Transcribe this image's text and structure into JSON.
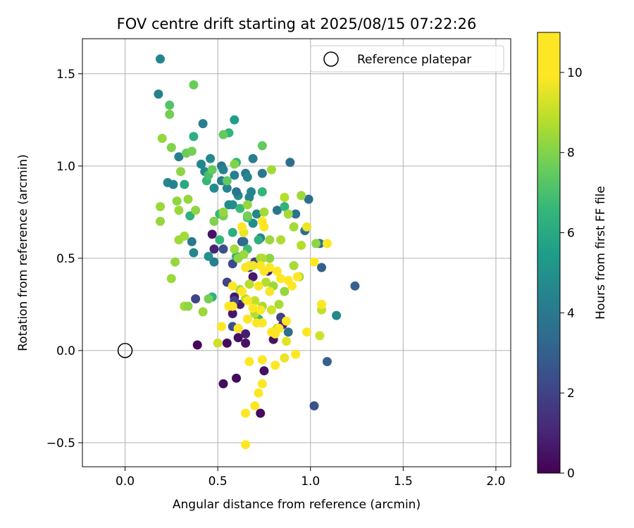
{
  "chart_data": {
    "type": "scatter",
    "title": "FOV centre drift starting at 2025/08/15 07:22:26",
    "xlabel": "Angular distance from reference (arcmin)",
    "ylabel": "Rotation from reference (arcmin)",
    "xlim": [
      -0.23,
      2.08
    ],
    "ylim": [
      -0.63,
      1.69
    ],
    "xticks": [
      0.0,
      0.5,
      1.0,
      1.5,
      2.0
    ],
    "xtick_labels": [
      "0.0",
      "0.5",
      "1.0",
      "1.5",
      "2.0"
    ],
    "yticks": [
      -0.5,
      0.0,
      0.5,
      1.0,
      1.5
    ],
    "ytick_labels": [
      "−0.5",
      "0.0",
      "0.5",
      "1.0",
      "1.5"
    ],
    "grid": true,
    "legend": {
      "label": "Reference platepar",
      "placement": "top-right"
    },
    "reference_point": {
      "x": 0.0,
      "y": 0.0
    },
    "colorbar": {
      "label": "Hours from first FF file",
      "range": [
        0,
        11
      ],
      "ticks": [
        0,
        2,
        4,
        6,
        8,
        10
      ],
      "tick_labels": [
        "0",
        "2",
        "4",
        "6",
        "8",
        "10"
      ],
      "colormap": "viridis"
    },
    "points": [
      [
        0.39,
        0.03,
        0.2
      ],
      [
        0.55,
        0.04,
        0.3
      ],
      [
        0.65,
        0.04,
        0.5
      ],
      [
        0.73,
        -0.34,
        0.3
      ],
      [
        0.6,
        -0.15,
        0.3
      ],
      [
        0.53,
        -0.18,
        0.3
      ],
      [
        0.75,
        -0.11,
        0.4
      ],
      [
        0.47,
        0.63,
        0.5
      ],
      [
        0.48,
        0.55,
        1
      ],
      [
        0.59,
        0.29,
        0.6
      ],
      [
        0.62,
        0.25,
        0.8
      ],
      [
        0.69,
        0.4,
        0.7
      ],
      [
        0.58,
        0.2,
        0.6
      ],
      [
        0.61,
        0.07,
        0.4
      ],
      [
        0.8,
        0.06,
        0.5
      ],
      [
        0.85,
        0.14,
        1
      ],
      [
        0.65,
        0.09,
        0.8
      ],
      [
        0.77,
        0.43,
        0.8
      ],
      [
        0.55,
        0.37,
        2
      ],
      [
        0.58,
        0.47,
        2.2
      ],
      [
        0.59,
        0.27,
        2
      ],
      [
        0.67,
        0.45,
        2.2
      ],
      [
        0.84,
        0.18,
        2
      ],
      [
        0.58,
        0.13,
        2.5
      ],
      [
        0.38,
        0.28,
        2
      ],
      [
        1.02,
        -0.3,
        2.5
      ],
      [
        1.24,
        0.35,
        3
      ],
      [
        1.06,
        0.45,
        3
      ],
      [
        1.09,
        -0.06,
        3
      ],
      [
        0.88,
        0.1,
        3.5
      ],
      [
        0.7,
        0.48,
        1.8
      ],
      [
        0.63,
        0.59,
        2.5
      ],
      [
        0.53,
        0.55,
        2.4
      ],
      [
        0.19,
        1.58,
        4.5
      ],
      [
        0.18,
        1.39,
        4.3
      ],
      [
        0.29,
        1.05,
        4.3
      ],
      [
        0.23,
        0.91,
        4.6
      ],
      [
        0.26,
        0.9,
        4.4
      ],
      [
        0.42,
        1.23,
        4.2
      ],
      [
        0.41,
        1.01,
        4.5
      ],
      [
        0.46,
        1.04,
        4.7
      ],
      [
        0.43,
        0.97,
        4.6
      ],
      [
        0.48,
        0.88,
        4.8
      ],
      [
        0.52,
        0.92,
        4.2
      ],
      [
        0.55,
        0.88,
        4.5
      ],
      [
        0.52,
        1.0,
        3.8
      ],
      [
        0.53,
        0.98,
        4.4
      ],
      [
        0.59,
        0.95,
        4.3
      ],
      [
        0.65,
        0.96,
        4
      ],
      [
        0.66,
        0.94,
        4.6
      ],
      [
        0.69,
        1.04,
        4.2
      ],
      [
        0.74,
        0.96,
        3.9
      ],
      [
        0.89,
        1.02,
        3.6
      ],
      [
        0.61,
        0.84,
        4.8
      ],
      [
        0.68,
        0.86,
        4.5
      ],
      [
        0.71,
        0.74,
        4.6
      ],
      [
        0.56,
        0.79,
        4.7
      ],
      [
        0.6,
        0.86,
        3.8
      ],
      [
        0.67,
        0.83,
        4.5
      ],
      [
        0.69,
        0.69,
        4.8
      ],
      [
        0.64,
        0.59,
        3.5
      ],
      [
        0.82,
        0.76,
        3.9
      ],
      [
        0.99,
        0.82,
        3.6
      ],
      [
        0.92,
        0.74,
        3.7
      ],
      [
        0.97,
        0.65,
        3.6
      ],
      [
        1.05,
        0.58,
        3.7
      ],
      [
        0.36,
        0.59,
        4
      ],
      [
        0.37,
        0.53,
        4.6
      ],
      [
        0.45,
        0.51,
        5
      ],
      [
        0.48,
        0.48,
        4.3
      ],
      [
        0.58,
        0.79,
        4.8
      ],
      [
        1.14,
        0.19,
        4.6
      ],
      [
        0.73,
        0.61,
        4.5
      ],
      [
        0.59,
        1.25,
        5.5
      ],
      [
        0.56,
        1.18,
        6.5
      ],
      [
        0.6,
        1.02,
        6.5
      ],
      [
        0.37,
        1.16,
        6.2
      ],
      [
        0.32,
        0.9,
        6
      ],
      [
        0.35,
        0.73,
        6.3
      ],
      [
        0.44,
        0.92,
        6.6
      ],
      [
        0.51,
        0.74,
        6.6
      ],
      [
        0.58,
        0.64,
        6.2
      ],
      [
        0.66,
        0.72,
        6.8
      ],
      [
        0.74,
        0.86,
        6.5
      ],
      [
        0.72,
        0.6,
        6.3
      ],
      [
        0.86,
        0.78,
        6.4
      ],
      [
        0.62,
        0.77,
        6.7
      ],
      [
        0.66,
        0.55,
        6.8
      ],
      [
        0.51,
        0.6,
        6.6
      ],
      [
        0.47,
        0.29,
        6.3
      ],
      [
        0.72,
        0.17,
        6.5
      ],
      [
        0.6,
        0.51,
        6.4
      ],
      [
        0.45,
        0.95,
        7
      ],
      [
        0.24,
        1.33,
        7.2
      ],
      [
        0.37,
        1.44,
        7.6
      ],
      [
        0.24,
        1.28,
        7.8
      ],
      [
        0.33,
        1.07,
        7.6
      ],
      [
        0.36,
        1.08,
        7.8
      ],
      [
        0.25,
        1.1,
        8
      ],
      [
        0.47,
        0.98,
        7.5
      ],
      [
        0.53,
        1.17,
        7.5
      ],
      [
        0.55,
        0.92,
        7.4
      ],
      [
        0.74,
        1.11,
        7.5
      ],
      [
        0.59,
        1.01,
        8
      ],
      [
        0.53,
        0.73,
        7.8
      ],
      [
        0.66,
        0.79,
        8.3
      ],
      [
        0.79,
        0.98,
        8.5
      ],
      [
        0.86,
        0.83,
        8.8
      ],
      [
        0.75,
        0.75,
        8.5
      ],
      [
        0.66,
        0.73,
        7.8
      ],
      [
        0.2,
        1.15,
        8.3
      ],
      [
        0.19,
        0.78,
        8.4
      ],
      [
        0.19,
        0.7,
        8.3
      ],
      [
        0.28,
        0.81,
        8.2
      ],
      [
        0.29,
        0.76,
        8.4
      ],
      [
        0.3,
        0.97,
        8.2
      ],
      [
        0.34,
        0.82,
        8.3
      ],
      [
        0.29,
        0.6,
        8.4
      ],
      [
        0.32,
        0.62,
        8.5
      ],
      [
        0.27,
        0.48,
        8.3
      ],
      [
        0.25,
        0.39,
        8.4
      ],
      [
        0.32,
        0.24,
        8.5
      ],
      [
        0.34,
        0.24,
        8.2
      ],
      [
        0.42,
        0.21,
        8.4
      ],
      [
        0.45,
        0.28,
        7.8
      ],
      [
        0.38,
        0.76,
        8.2
      ],
      [
        0.48,
        0.7,
        8
      ],
      [
        0.53,
        0.75,
        8.3
      ],
      [
        0.59,
        0.55,
        8.5
      ],
      [
        0.64,
        0.52,
        8.4
      ],
      [
        0.61,
        0.5,
        8.2
      ],
      [
        0.67,
        0.36,
        8.8
      ],
      [
        0.62,
        0.33,
        8.6
      ],
      [
        0.65,
        0.28,
        8.8
      ],
      [
        0.7,
        0.27,
        9
      ],
      [
        0.74,
        0.24,
        8.6
      ],
      [
        0.78,
        0.5,
        8.2
      ],
      [
        0.73,
        0.5,
        8.5
      ],
      [
        0.76,
        0.37,
        8.8
      ],
      [
        0.8,
        0.35,
        8.4
      ],
      [
        0.86,
        0.32,
        8.3
      ],
      [
        0.83,
        0.25,
        8.6
      ],
      [
        0.91,
        0.46,
        8.6
      ],
      [
        0.95,
        0.57,
        8.8
      ],
      [
        1.06,
        0.22,
        9
      ],
      [
        1.05,
        0.08,
        9.2
      ],
      [
        0.87,
        0.05,
        9.5
      ],
      [
        0.82,
        0.12,
        9
      ],
      [
        0.7,
        0.2,
        8.8
      ],
      [
        0.79,
        0.22,
        9.2
      ],
      [
        0.74,
        0.5,
        8.7
      ],
      [
        0.5,
        0.04,
        9.2
      ],
      [
        0.94,
        0.4,
        8.5
      ],
      [
        1.03,
        0.58,
        8.2
      ],
      [
        0.95,
        0.84,
        8.4
      ],
      [
        0.88,
        0.74,
        8.5
      ],
      [
        0.91,
        0.67,
        8.5
      ],
      [
        0.84,
        0.6,
        8.7
      ],
      [
        0.78,
        0.6,
        8.4
      ],
      [
        0.65,
        0.45,
        9.8
      ],
      [
        0.67,
        0.46,
        10
      ],
      [
        0.73,
        0.46,
        10.2
      ],
      [
        0.78,
        0.45,
        10
      ],
      [
        0.82,
        0.43,
        10.3
      ],
      [
        0.84,
        0.39,
        10.5
      ],
      [
        0.88,
        0.38,
        10.5
      ],
      [
        0.9,
        0.35,
        10.5
      ],
      [
        0.93,
        0.4,
        10.5
      ],
      [
        0.98,
        0.67,
        9.7
      ],
      [
        1.02,
        0.48,
        10.5
      ],
      [
        1.09,
        0.58,
        10.8
      ],
      [
        1.06,
        0.25,
        10.8
      ],
      [
        0.72,
        0.35,
        9.8
      ],
      [
        0.75,
        0.43,
        9.9
      ],
      [
        0.78,
        0.32,
        9.8
      ],
      [
        0.63,
        0.32,
        10.5
      ],
      [
        0.58,
        0.35,
        10.3
      ],
      [
        0.66,
        0.27,
        10
      ],
      [
        0.69,
        0.23,
        10
      ],
      [
        0.73,
        0.22,
        10.2
      ],
      [
        0.56,
        0.24,
        10.5
      ],
      [
        0.58,
        0.24,
        10.2
      ],
      [
        0.52,
        0.13,
        10.3
      ],
      [
        0.61,
        0.12,
        10.5
      ],
      [
        0.66,
        0.17,
        10.4
      ],
      [
        0.71,
        0.15,
        10.7
      ],
      [
        0.74,
        0.15,
        10.5
      ],
      [
        0.79,
        0.1,
        10.6
      ],
      [
        0.83,
        0.12,
        10.3
      ],
      [
        0.87,
        0.16,
        10.5
      ],
      [
        0.81,
        0.09,
        10.8
      ],
      [
        0.92,
        -0.02,
        10.7
      ],
      [
        0.98,
        0.1,
        10.3
      ],
      [
        0.67,
        -0.06,
        10.8
      ],
      [
        0.81,
        -0.08,
        10.8
      ],
      [
        0.74,
        -0.18,
        10.9
      ],
      [
        0.72,
        -0.23,
        10.8
      ],
      [
        0.7,
        -0.3,
        10.8
      ],
      [
        0.65,
        -0.34,
        10.9
      ],
      [
        0.65,
        -0.51,
        11
      ],
      [
        0.74,
        -0.05,
        10.6
      ],
      [
        0.86,
        -0.04,
        9.6
      ],
      [
        0.75,
        0.67,
        10.1
      ],
      [
        0.74,
        0.7,
        10.3
      ],
      [
        0.64,
        0.64,
        9.6
      ],
      [
        0.63,
        0.67,
        9.9
      ],
      [
        0.69,
        0.46,
        9.7
      ]
    ]
  }
}
